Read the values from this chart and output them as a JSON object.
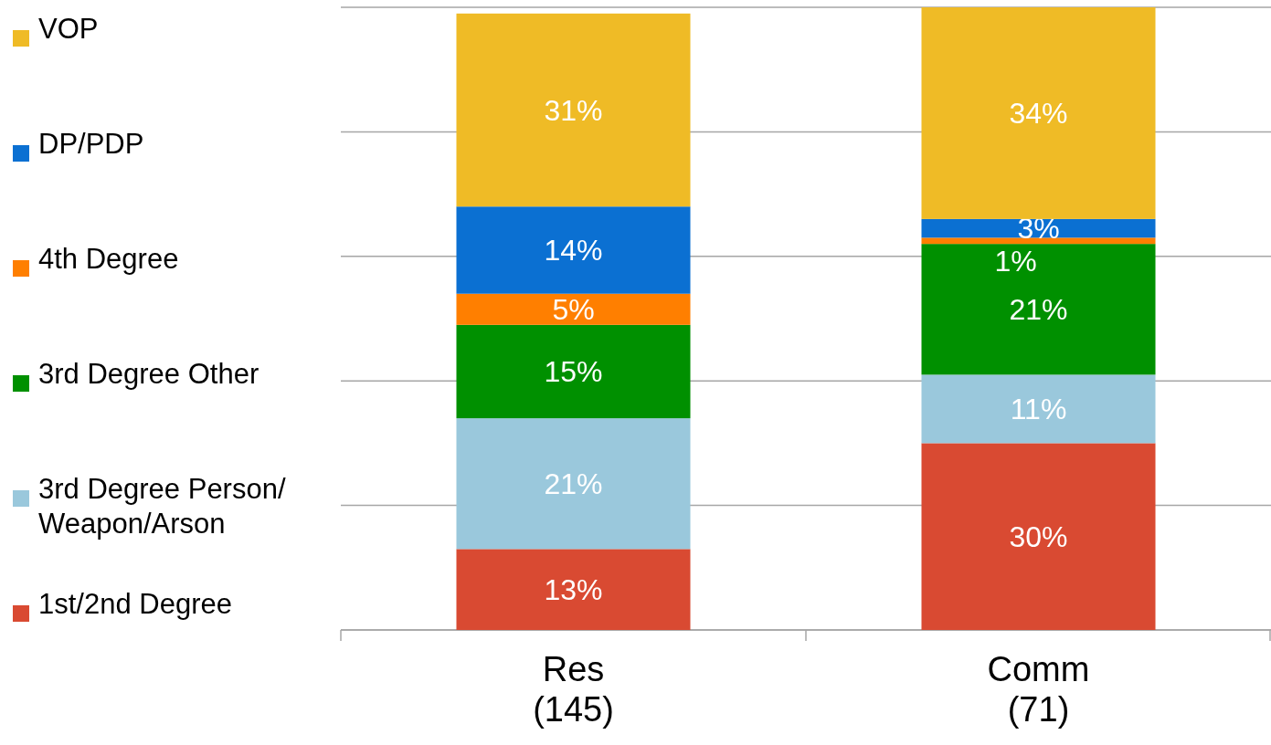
{
  "chart_data": {
    "type": "bar",
    "stacked": true,
    "categories": [
      "Res\n(145)",
      "Comm\n(71)"
    ],
    "series": [
      {
        "name": "1st/2nd Degree",
        "color": "#d94a32",
        "values": [
          13,
          30
        ],
        "value_labels": [
          "13%",
          "30%"
        ]
      },
      {
        "name": "3rd Degree Person/Weapon/Arson",
        "color": "#9ac8dc",
        "values": [
          21,
          11
        ],
        "value_labels": [
          "21%",
          "11%"
        ]
      },
      {
        "name": "3rd Degree Other",
        "color": "#009000",
        "values": [
          15,
          21
        ],
        "value_labels": [
          "15%",
          "21%"
        ]
      },
      {
        "name": "4th Degree",
        "color": "#ff7f00",
        "values": [
          5,
          1
        ],
        "value_labels": [
          "5%",
          "1%"
        ]
      },
      {
        "name": "DP/PDP",
        "color": "#0b70d2",
        "values": [
          14,
          3
        ],
        "value_labels": [
          "14%",
          "3%"
        ]
      },
      {
        "name": "VOP",
        "color": "#efbb26",
        "values": [
          31,
          34
        ],
        "value_labels": [
          "31%",
          "34%"
        ]
      }
    ],
    "grid": "y",
    "legend": "left",
    "tick_labels": "x"
  }
}
